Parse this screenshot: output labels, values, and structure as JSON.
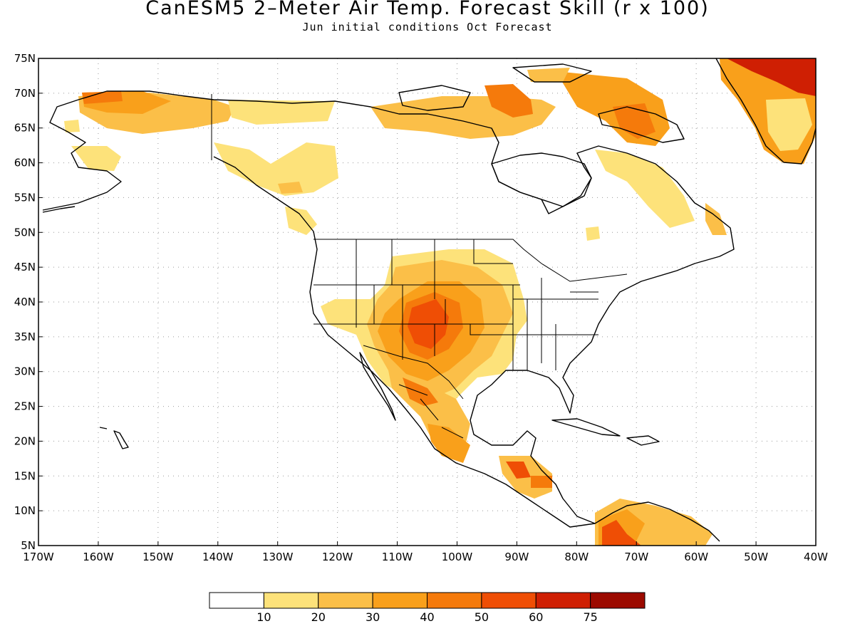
{
  "title": "CanESM5 2–Meter Air Temp. Forecast Skill (r x 100)",
  "subtitle": "Jun initial conditions  Oct Forecast",
  "axes": {
    "lat_labels": [
      "75N",
      "70N",
      "65N",
      "60N",
      "55N",
      "50N",
      "45N",
      "40N",
      "35N",
      "30N",
      "25N",
      "20N",
      "15N",
      "10N",
      "5N"
    ],
    "lon_labels": [
      "170W",
      "160W",
      "150W",
      "140W",
      "130W",
      "120W",
      "110W",
      "100W",
      "90W",
      "80W",
      "70W",
      "60W",
      "50W",
      "40W"
    ]
  },
  "map_extent": {
    "lon": [
      -170,
      -40
    ],
    "lat": [
      5,
      75
    ],
    "gridlines": "dotted"
  },
  "colorbar": {
    "labels": [
      "10",
      "20",
      "30",
      "40",
      "50",
      "60",
      "75"
    ],
    "colors": [
      "#ffffff",
      "#fde27a",
      "#fbbf48",
      "#f9a01b",
      "#f57a0b",
      "#ef4e05",
      "#cf1f03",
      "#9c0a00"
    ]
  },
  "skill_regions": [
    {
      "name": "Colorado / New Mexico / west Texas core",
      "max_level": "50-60"
    },
    {
      "name": "Mexican Plateau",
      "max_level": "50-60"
    },
    {
      "name": "Central America (Guatemala / Honduras)",
      "max_level": "50-60"
    },
    {
      "name": "Northern South America (Venezuela)",
      "max_level": "50-60"
    },
    {
      "name": "Greenland",
      "max_level": "60-75"
    },
    {
      "name": "Canadian Arctic Archipelago",
      "max_level": "40-50"
    },
    {
      "name": "Alaska North Slope",
      "max_level": "40-50"
    }
  ]
}
